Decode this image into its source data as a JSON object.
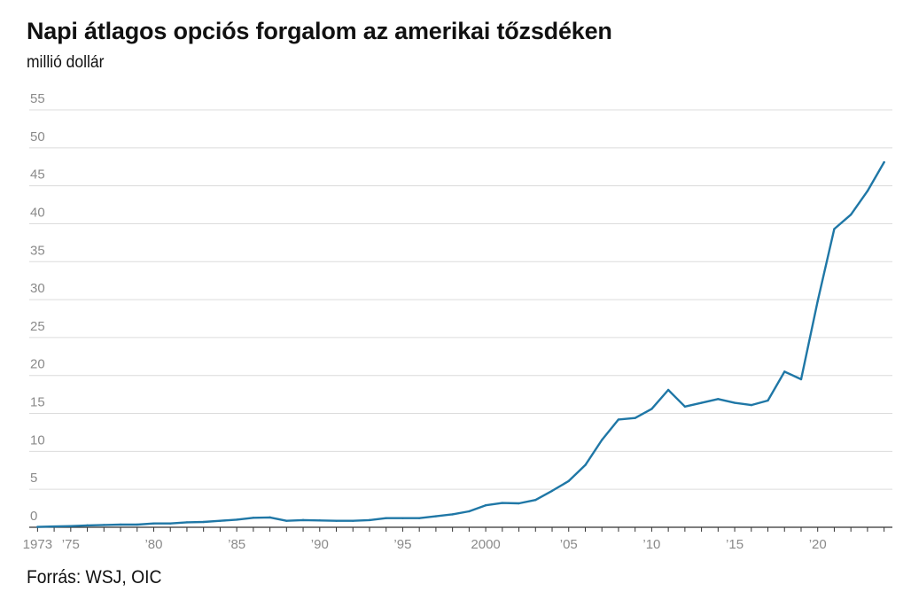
{
  "header": {
    "title": "Napi átlagos opciós forgalom az amerikai tőzsdéken",
    "unit": "millió dollár"
  },
  "footer": {
    "source": "Forrás: WSJ, OIC"
  },
  "chart_data": {
    "type": "line",
    "title": "Napi átlagos opciós forgalom az amerikai tőzsdéken",
    "ylabel": "millió dollár",
    "xlabel": "",
    "ylim": [
      0,
      55
    ],
    "xlim": [
      1972.5,
      2024.5
    ],
    "grid": true,
    "color": "#1f77a6",
    "y_ticks": [
      0,
      5,
      10,
      15,
      20,
      25,
      30,
      35,
      40,
      45,
      50,
      55
    ],
    "x_ticks": [
      {
        "value": 1973,
        "label": "1973"
      },
      {
        "value": 1975,
        "label": "’75"
      },
      {
        "value": 1980,
        "label": "’80"
      },
      {
        "value": 1985,
        "label": "’85"
      },
      {
        "value": 1990,
        "label": "’90"
      },
      {
        "value": 1995,
        "label": "’95"
      },
      {
        "value": 2000,
        "label": "2000"
      },
      {
        "value": 2005,
        "label": "’05"
      },
      {
        "value": 2010,
        "label": "’10"
      },
      {
        "value": 2015,
        "label": "’15"
      },
      {
        "value": 2020,
        "label": "’20"
      }
    ],
    "x": [
      1973,
      1974,
      1975,
      1976,
      1977,
      1978,
      1979,
      1980,
      1981,
      1982,
      1983,
      1984,
      1985,
      1986,
      1987,
      1988,
      1989,
      1990,
      1991,
      1992,
      1993,
      1994,
      1995,
      1996,
      1997,
      1998,
      1999,
      2000,
      2001,
      2002,
      2003,
      2004,
      2005,
      2006,
      2007,
      2008,
      2009,
      2010,
      2011,
      2012,
      2013,
      2014,
      2015,
      2016,
      2017,
      2018,
      2019,
      2020,
      2021,
      2022,
      2023,
      2024
    ],
    "values": [
      0.05,
      0.1,
      0.15,
      0.25,
      0.3,
      0.35,
      0.35,
      0.5,
      0.5,
      0.65,
      0.7,
      0.85,
      1.0,
      1.25,
      1.3,
      0.85,
      0.95,
      0.9,
      0.85,
      0.85,
      0.95,
      1.2,
      1.2,
      1.2,
      1.45,
      1.7,
      2.1,
      2.9,
      3.2,
      3.15,
      3.6,
      4.8,
      6.1,
      8.2,
      11.5,
      14.2,
      14.4,
      15.6,
      18.1,
      15.9,
      16.4,
      16.9,
      16.4,
      16.1,
      16.7,
      20.5,
      19.5,
      29.8,
      39.3,
      41.2,
      44.3,
      48.1
    ]
  }
}
